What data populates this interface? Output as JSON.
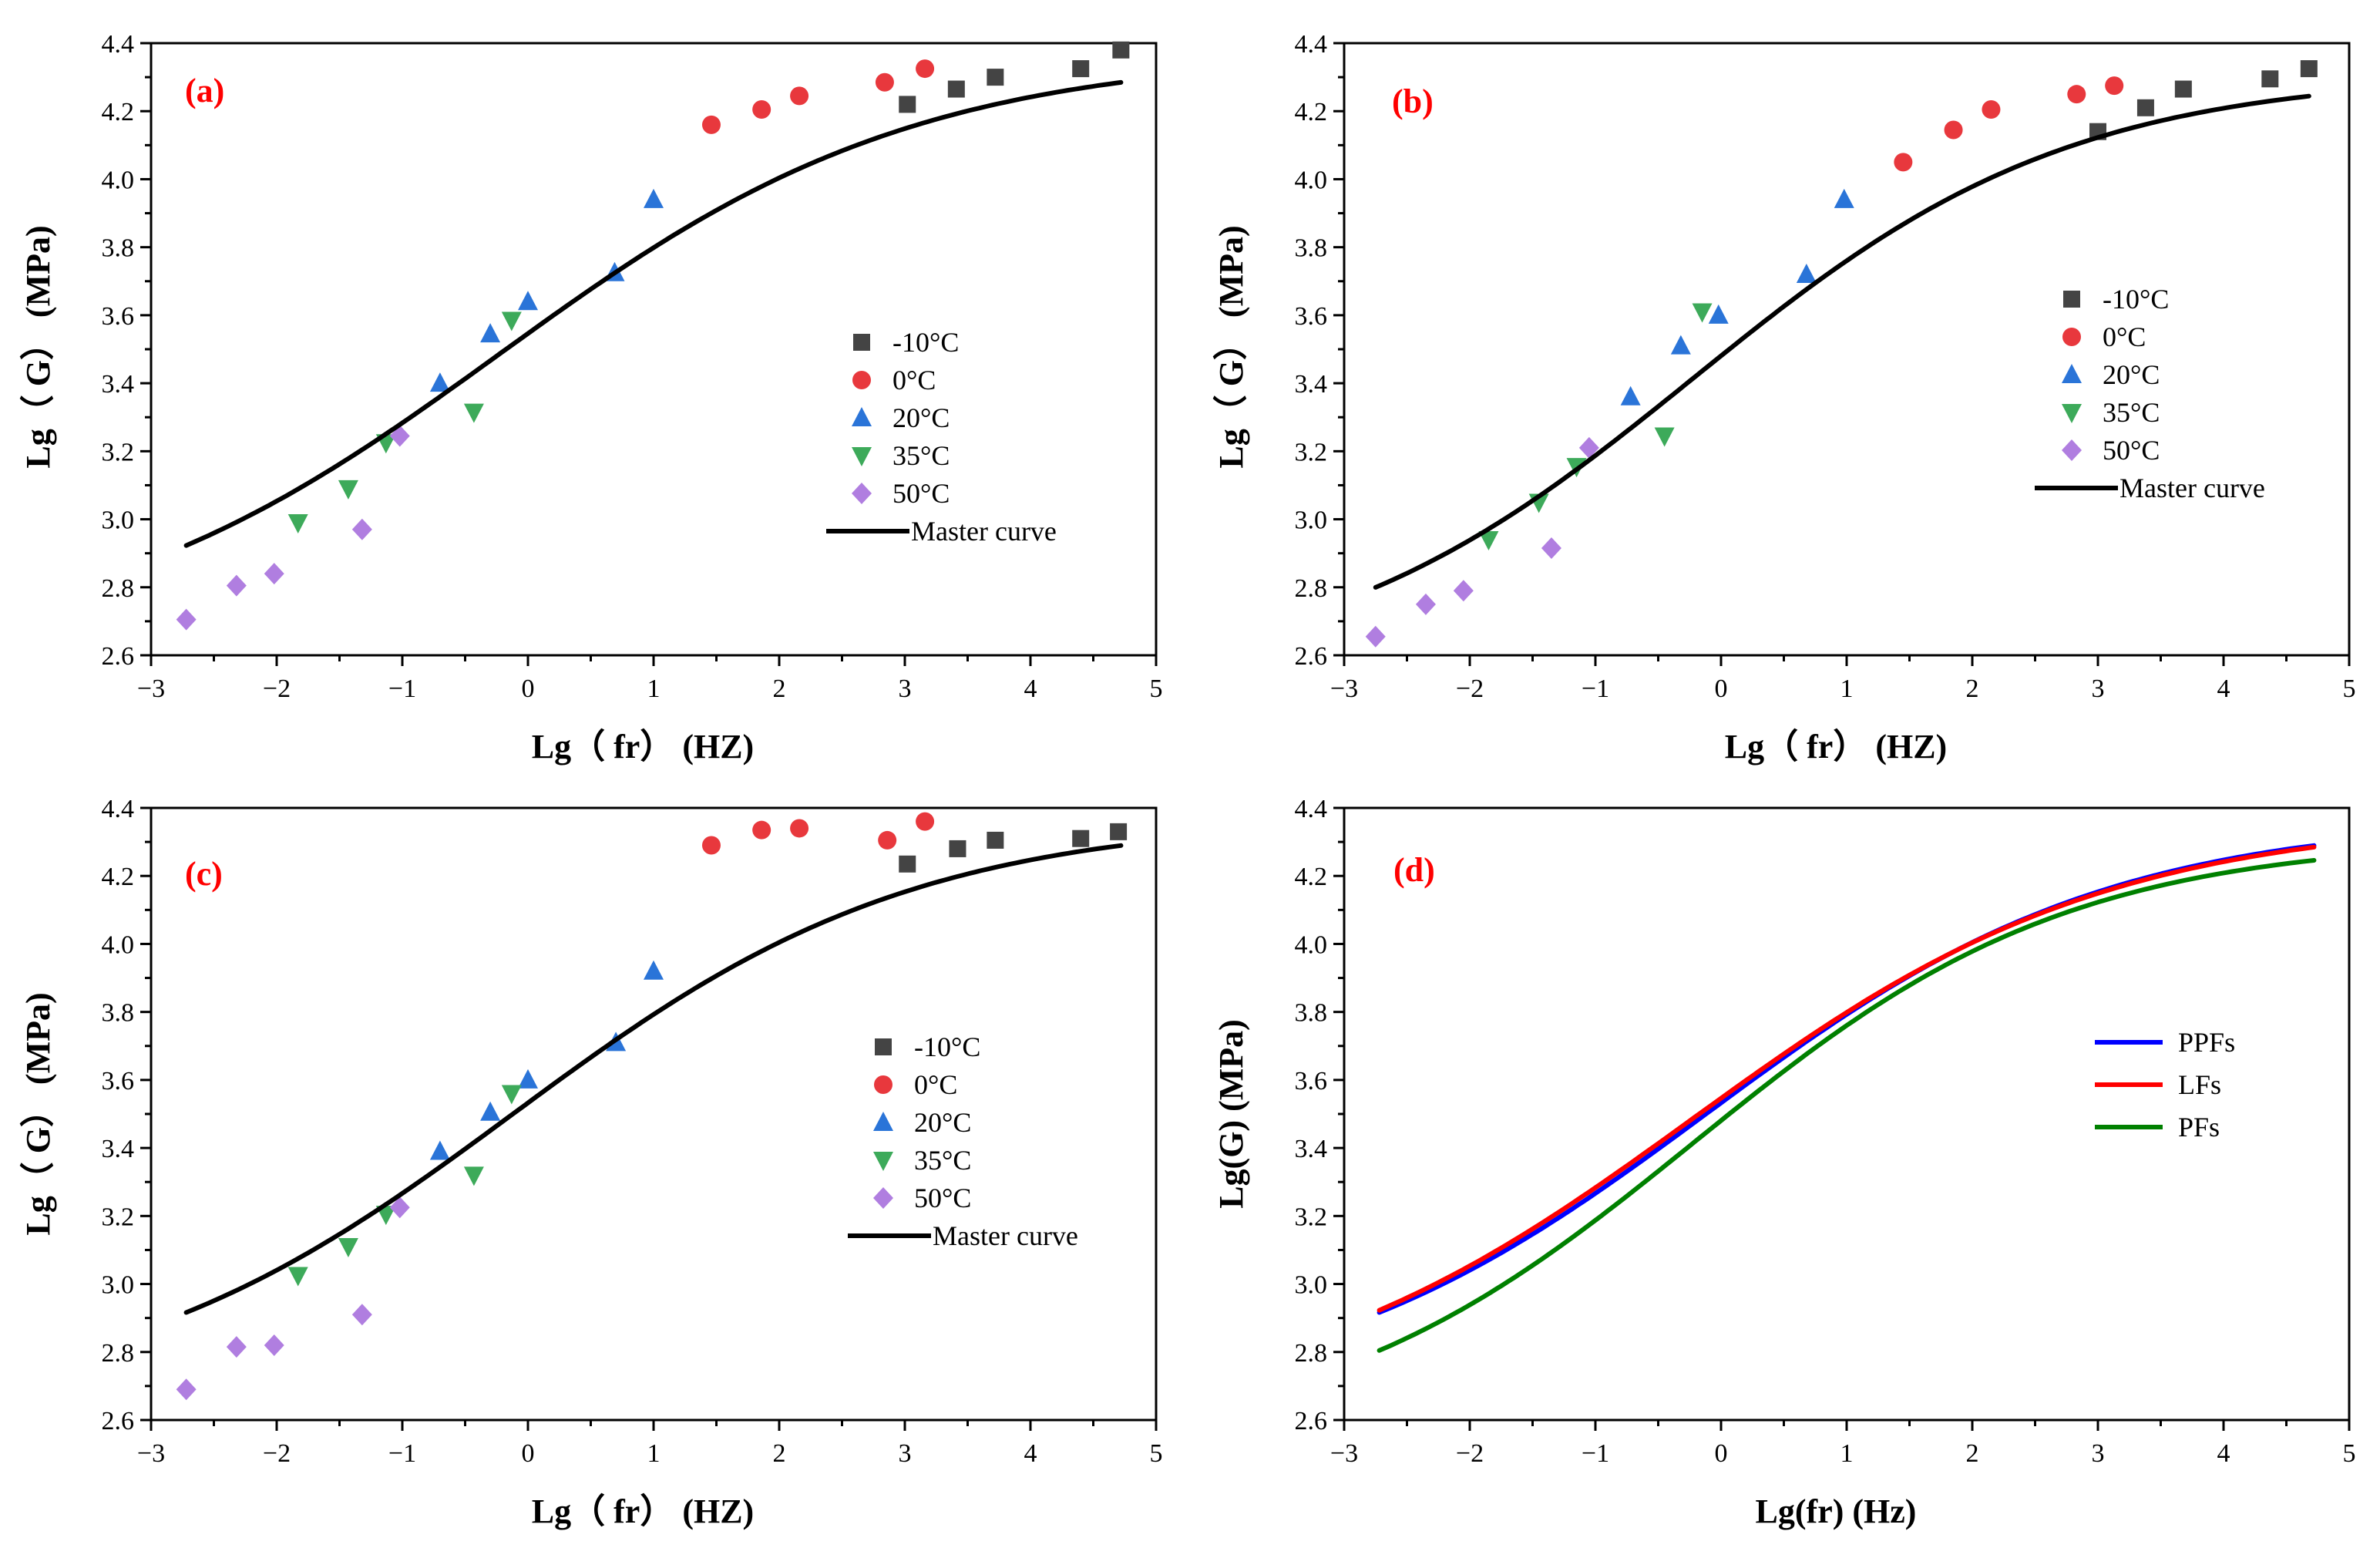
{
  "figure": {
    "caption": ""
  },
  "colors": {
    "m10": "#444444",
    "c0": "#e8383d",
    "c20": "#2a74d8",
    "c35": "#3daa5a",
    "c50": "#b07ee0",
    "master": "#000000",
    "PPFs": "#0000ff",
    "LFs": "#ff0000",
    "PFs": "#008000"
  },
  "chart_data": [
    {
      "panel": "(a)",
      "type": "scatter",
      "xlabel": "Lg（ fr） (HZ)",
      "ylabel": "Lg（ G） (MPa)",
      "xlim": [
        -3,
        5
      ],
      "ylim": [
        2.6,
        4.4
      ],
      "xticks": [
        "−3",
        "−2",
        "−1",
        "0",
        "1",
        "2",
        "3",
        "4",
        "5"
      ],
      "yticks": [
        "2.6",
        "2.8",
        "3.0",
        "3.2",
        "3.4",
        "3.6",
        "3.8",
        "4.0",
        "4.2",
        "4.4"
      ],
      "legend_position": "right-center",
      "series": [
        {
          "name": "-10°C",
          "marker": "square",
          "color_key": "m10",
          "x": [
            3.02,
            3.41,
            3.72,
            4.4,
            4.72
          ],
          "y": [
            4.22,
            4.265,
            4.3,
            4.325,
            4.38
          ]
        },
        {
          "name": "0°C",
          "marker": "circle",
          "color_key": "c0",
          "x": [
            1.46,
            1.86,
            2.16,
            2.84,
            3.16
          ],
          "y": [
            4.16,
            4.205,
            4.245,
            4.285,
            4.325
          ]
        },
        {
          "name": "20°C",
          "marker": "triangle-up",
          "color_key": "c20",
          "x": [
            -0.7,
            -0.3,
            0.0,
            0.69,
            1.0
          ],
          "y": [
            3.4,
            3.545,
            3.64,
            3.725,
            3.94
          ]
        },
        {
          "name": "35°C",
          "marker": "triangle-down",
          "color_key": "c35",
          "x": [
            -1.83,
            -1.43,
            -1.13,
            -0.43,
            -0.13
          ],
          "y": [
            2.99,
            3.09,
            3.225,
            3.315,
            3.585
          ]
        },
        {
          "name": "50°C",
          "marker": "diamond",
          "color_key": "c50",
          "x": [
            -2.72,
            -2.32,
            -2.02,
            -1.32,
            -1.02
          ],
          "y": [
            2.705,
            2.805,
            2.84,
            2.97,
            3.245
          ]
        },
        {
          "name": "Master curve",
          "line": true,
          "color_key": "master",
          "model": {
            "lo": 2.6,
            "hi": 4.37,
            "mid": -0.23,
            "width": 1.66
          },
          "x_range": [
            -2.72,
            4.72
          ]
        }
      ]
    },
    {
      "panel": "(b)",
      "type": "scatter",
      "xlabel": "Lg（ fr） (HZ)",
      "ylabel": "Lg（ G） (MPa)",
      "xlim": [
        -3,
        5
      ],
      "ylim": [
        2.6,
        4.4
      ],
      "xticks": [
        "−3",
        "−2",
        "−1",
        "0",
        "1",
        "2",
        "3",
        "4",
        "5"
      ],
      "yticks": [
        "2.6",
        "2.8",
        "3.0",
        "3.2",
        "3.4",
        "3.6",
        "3.8",
        "4.0",
        "4.2",
        "4.4"
      ],
      "legend_position": "top-right",
      "series": [
        {
          "name": "-10°C",
          "marker": "square",
          "color_key": "m10",
          "x": [
            3.0,
            3.38,
            3.68,
            4.37,
            4.68
          ],
          "y": [
            4.14,
            4.21,
            4.265,
            4.295,
            4.325
          ]
        },
        {
          "name": "0°C",
          "marker": "circle",
          "color_key": "c0",
          "x": [
            1.45,
            1.85,
            2.15,
            2.83,
            3.13
          ],
          "y": [
            4.05,
            4.145,
            4.205,
            4.25,
            4.275
          ]
        },
        {
          "name": "20°C",
          "marker": "triangle-up",
          "color_key": "c20",
          "x": [
            -0.72,
            -0.32,
            -0.02,
            0.68,
            0.98
          ],
          "y": [
            3.36,
            3.51,
            3.6,
            3.72,
            3.94
          ]
        },
        {
          "name": "35°C",
          "marker": "triangle-down",
          "color_key": "c35",
          "x": [
            -1.85,
            -1.45,
            -1.15,
            -0.45,
            -0.15
          ],
          "y": [
            2.94,
            3.05,
            3.155,
            3.245,
            3.61
          ]
        },
        {
          "name": "50°C",
          "marker": "diamond",
          "color_key": "c50",
          "x": [
            -2.75,
            -2.35,
            -2.05,
            -1.35,
            -1.05
          ],
          "y": [
            2.655,
            2.75,
            2.79,
            2.915,
            3.21
          ]
        },
        {
          "name": "Master curve",
          "line": true,
          "color_key": "master",
          "model": {
            "lo": 2.52,
            "hi": 4.31,
            "mid": -0.22,
            "width": 1.5
          },
          "x_range": [
            -2.75,
            4.68
          ]
        }
      ]
    },
    {
      "panel": "(c)",
      "type": "scatter",
      "xlabel": "Lg（ fr） (HZ)",
      "ylabel": "Lg（ G） (MPa)",
      "xlim": [
        -3,
        5
      ],
      "ylim": [
        2.6,
        4.4
      ],
      "xticks": [
        "−3",
        "−2",
        "−1",
        "0",
        "1",
        "2",
        "3",
        "4",
        "5"
      ],
      "yticks": [
        "2.6",
        "2.8",
        "3.0",
        "3.2",
        "3.4",
        "3.6",
        "3.8",
        "4.0",
        "4.2",
        "4.4"
      ],
      "legend_position": "right-center",
      "series": [
        {
          "name": "-10°C",
          "marker": "square",
          "color_key": "m10",
          "x": [
            3.02,
            3.42,
            3.72,
            4.4,
            4.7
          ],
          "y": [
            4.235,
            4.28,
            4.305,
            4.31,
            4.33
          ]
        },
        {
          "name": "0°C",
          "marker": "circle",
          "color_key": "c0",
          "x": [
            1.46,
            1.86,
            2.16,
            2.86,
            3.16
          ],
          "y": [
            4.29,
            4.335,
            4.34,
            4.305,
            4.36
          ]
        },
        {
          "name": "20°C",
          "marker": "triangle-up",
          "color_key": "c20",
          "x": [
            -0.7,
            -0.3,
            0.0,
            0.7,
            1.0
          ],
          "y": [
            3.39,
            3.505,
            3.6,
            3.71,
            3.92
          ]
        },
        {
          "name": "35°C",
          "marker": "triangle-down",
          "color_key": "c35",
          "x": [
            -1.83,
            -1.43,
            -1.13,
            -0.43,
            -0.13
          ],
          "y": [
            3.025,
            3.11,
            3.205,
            3.32,
            3.56
          ]
        },
        {
          "name": "50°C",
          "marker": "diamond",
          "color_key": "c50",
          "x": [
            -2.72,
            -2.32,
            -2.02,
            -1.32,
            -1.02
          ],
          "y": [
            2.69,
            2.815,
            2.82,
            2.91,
            3.225
          ]
        },
        {
          "name": "Master curve",
          "line": true,
          "color_key": "master",
          "model": {
            "lo": 2.63,
            "hi": 4.37,
            "mid": -0.12,
            "width": 1.6
          },
          "x_range": [
            -2.72,
            4.72
          ]
        }
      ]
    },
    {
      "panel": "(d)",
      "type": "line",
      "xlabel": "Lg(fr) (Hz)",
      "ylabel": "Lg(G) (MPa)",
      "xlim": [
        -3,
        5
      ],
      "ylim": [
        2.6,
        4.4
      ],
      "xticks": [
        "−3",
        "−2",
        "−1",
        "0",
        "1",
        "2",
        "3",
        "4",
        "5"
      ],
      "yticks": [
        "2.6",
        "2.8",
        "3.0",
        "3.2",
        "3.4",
        "3.6",
        "3.8",
        "4.0",
        "4.2",
        "4.4"
      ],
      "legend_position": "right-center",
      "series": [
        {
          "name": "PPFs",
          "line": true,
          "color_key": "PPFs",
          "model": {
            "lo": 2.63,
            "hi": 4.37,
            "mid": -0.12,
            "width": 1.6
          },
          "x_range": [
            -2.72,
            4.72
          ]
        },
        {
          "name": "LFs",
          "line": true,
          "color_key": "LFs",
          "model": {
            "lo": 2.6,
            "hi": 4.37,
            "mid": -0.23,
            "width": 1.66
          },
          "x_range": [
            -2.72,
            4.72
          ]
        },
        {
          "name": "PFs",
          "line": true,
          "color_key": "PFs",
          "model": {
            "lo": 2.52,
            "hi": 4.31,
            "mid": -0.22,
            "width": 1.5
          },
          "x_range": [
            -2.72,
            4.72
          ]
        }
      ]
    }
  ]
}
